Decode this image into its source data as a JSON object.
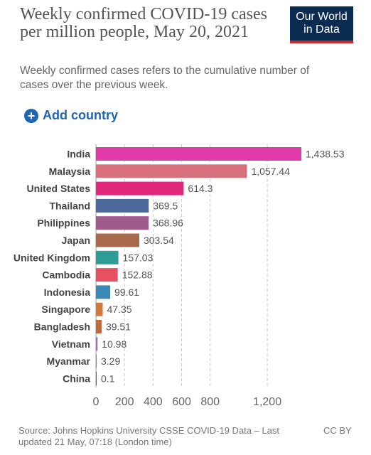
{
  "header": {
    "title": "Weekly confirmed COVID-19 cases per million people, May 20, 2021",
    "subtitle": "Weekly confirmed cases refers to the cumulative number of cases over the previous week.",
    "logo_line1": "Our World",
    "logo_line2": "in Data"
  },
  "controls": {
    "add_country_label": "Add country",
    "add_icon": "plus-circle-icon"
  },
  "chart_data": {
    "type": "bar",
    "orientation": "horizontal",
    "categories": [
      "India",
      "Malaysia",
      "United States",
      "Thailand",
      "Philippines",
      "Japan",
      "United Kingdom",
      "Cambodia",
      "Indonesia",
      "Singapore",
      "Bangladesh",
      "Vietnam",
      "Myanmar",
      "China"
    ],
    "values": [
      1438.53,
      1057.44,
      614.3,
      369.5,
      368.96,
      303.54,
      157.03,
      152.88,
      99.61,
      47.35,
      39.51,
      10.98,
      3.29,
      0.1
    ],
    "value_labels": [
      "1,438.53",
      "1,057.44",
      "614.3",
      "369.5",
      "368.96",
      "303.54",
      "157.03",
      "152.88",
      "99.61",
      "47.35",
      "39.51",
      "10.98",
      "3.29",
      "0.1"
    ],
    "colors": [
      "#e03aa8",
      "#d7707c",
      "#e1287d",
      "#4c6a9c",
      "#a05a8c",
      "#a96a4b",
      "#2d9e96",
      "#e65060",
      "#3b87b5",
      "#d2793a",
      "#c2693a",
      "#a867c8",
      "#47a6a1",
      "#a04848"
    ],
    "xticks": [
      0,
      200,
      400,
      600,
      800,
      1200
    ],
    "xtick_labels": [
      "0",
      "200",
      "400",
      "600",
      "800",
      "1,200"
    ],
    "xlim": [
      0,
      1438.53
    ],
    "grid": true
  },
  "footer": {
    "source": "Source: Johns Hopkins University CSSE COVID-19 Data – Last updated 21 May, 07:18 (London time)",
    "license": "CC BY"
  }
}
